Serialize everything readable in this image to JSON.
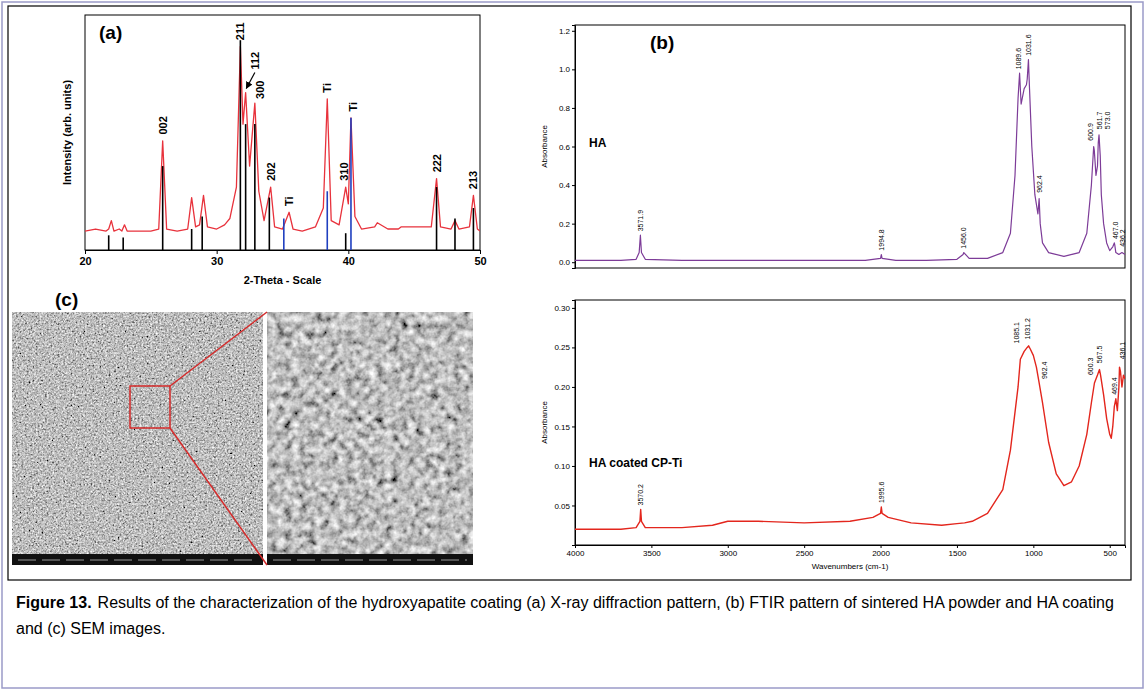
{
  "chart_data": [
    {
      "type": "line",
      "title": "(a)",
      "x_label": "2-Theta - Scale",
      "y_label": "Intensity (arb. units)",
      "xlim": [
        20,
        50
      ],
      "ylim": [
        0,
        112
      ],
      "xticks": [
        20,
        30,
        40,
        50
      ],
      "tick_labels": "x",
      "series": [
        {
          "type": "line",
          "color": "#e8323c",
          "x": [
            20,
            20.8,
            21.6,
            21.8,
            22.0,
            22.2,
            22.6,
            22.8,
            23.0,
            23.2,
            24,
            25,
            25.6,
            25.9,
            26.2,
            27,
            27.8,
            28.1,
            28.4,
            28.7,
            29.0,
            29.3,
            30,
            30.6,
            31.0,
            31.5,
            31.8,
            32.0,
            32.2,
            32.5,
            32.9,
            33.2,
            33.6,
            34.1,
            34.4,
            35,
            35.5,
            35.8,
            36.5,
            37.5,
            38.1,
            38.4,
            38.7,
            39.3,
            39.8,
            40.0,
            40.2,
            40.5,
            41,
            42,
            42.2,
            43,
            43.8,
            44,
            45,
            46.3,
            46.7,
            47.0,
            47.8,
            48.1,
            48.4,
            49.2,
            49.5,
            49.8,
            50
          ],
          "values": [
            9,
            10,
            9,
            10,
            14,
            9,
            10,
            9,
            12,
            9,
            9,
            9,
            10,
            52,
            10,
            9,
            10,
            25,
            11,
            12,
            26,
            11,
            10,
            12,
            15,
            30,
            97,
            60,
            75,
            40,
            70,
            28,
            14,
            30,
            11,
            10,
            18,
            10,
            9,
            11,
            20,
            72,
            14,
            12,
            30,
            22,
            63,
            16,
            10,
            11,
            13,
            10,
            10,
            11,
            11,
            11,
            34,
            11,
            10,
            14,
            10,
            11,
            26,
            10,
            9
          ]
        },
        {
          "type": "stick",
          "color": "#000000",
          "x": [
            21.8,
            22.9,
            25.9,
            28.1,
            28.9,
            31.8,
            32.2,
            32.9,
            34.0,
            39.8,
            46.7,
            48.1,
            49.5
          ],
          "values": [
            7,
            6,
            40,
            10,
            16,
            100,
            60,
            60,
            25,
            8,
            30,
            15,
            20
          ]
        },
        {
          "type": "stick",
          "color": "#1f3fbf",
          "x": [
            35.1,
            38.4,
            40.2
          ],
          "values": [
            15,
            28,
            63
          ]
        }
      ],
      "annotations": [
        {
          "text": "002",
          "x": 25.9,
          "y": 55
        },
        {
          "text": "211",
          "x": 31.8,
          "y": 100
        },
        {
          "text": "112",
          "x": 32.9,
          "y": 86,
          "arrow_x": 32.25,
          "arrow_y": 77
        },
        {
          "text": "300",
          "x": 33.3,
          "y": 72
        },
        {
          "text": "202",
          "x": 34.1,
          "y": 33
        },
        {
          "text": "Ti",
          "x": 35.5,
          "y": 21
        },
        {
          "text": "Ti",
          "x": 38.4,
          "y": 75
        },
        {
          "text": "310",
          "x": 39.7,
          "y": 33
        },
        {
          "text": "Ti",
          "x": 40.35,
          "y": 66
        },
        {
          "text": "222",
          "x": 46.7,
          "y": 37
        },
        {
          "text": "213",
          "x": 49.5,
          "y": 29
        }
      ]
    },
    {
      "type": "line",
      "title": "(b)",
      "y_label": "Absorbance",
      "xlim": [
        4000,
        400
      ],
      "ylim": [
        -0.03,
        1.23
      ],
      "yticks": [
        {
          "value": 0,
          "label": "0.0"
        },
        0.2,
        0.4,
        0.6,
        0.8,
        {
          "value": 1,
          "label": "1.0"
        },
        1.2
      ],
      "tick_labels": "y",
      "series": [
        {
          "name": "HA",
          "color": "#7d3c98",
          "x": [
            4000,
            3700,
            3600,
            3580,
            3572,
            3565,
            3540,
            3300,
            3000,
            2500,
            2100,
            2000,
            1995,
            1990,
            1900,
            1700,
            1500,
            1460,
            1455,
            1420,
            1300,
            1200,
            1150,
            1120,
            1100,
            1090,
            1080,
            1060,
            1045,
            1040,
            1032,
            1025,
            1010,
            990,
            970,
            962,
            955,
            940,
            900,
            800,
            700,
            650,
            620,
            605,
            601,
            590,
            580,
            575,
            570,
            562,
            555,
            540,
            520,
            500,
            480,
            470,
            467,
            460,
            440,
            420,
            400
          ],
          "values": [
            0.01,
            0.01,
            0.015,
            0.05,
            0.14,
            0.05,
            0.015,
            0.01,
            0.01,
            0.01,
            0.01,
            0.02,
            0.04,
            0.02,
            0.01,
            0.01,
            0.015,
            0.04,
            0.05,
            0.02,
            0.02,
            0.05,
            0.15,
            0.45,
            0.85,
            0.98,
            0.82,
            0.9,
            0.92,
            0.95,
            1.05,
            0.9,
            0.6,
            0.35,
            0.25,
            0.33,
            0.2,
            0.1,
            0.05,
            0.03,
            0.05,
            0.15,
            0.4,
            0.6,
            0.58,
            0.45,
            0.5,
            0.62,
            0.66,
            0.55,
            0.35,
            0.2,
            0.1,
            0.06,
            0.08,
            0.1,
            0.09,
            0.05,
            0.04,
            0.05,
            0.04
          ]
        }
      ],
      "annotations": [
        {
          "text": "3571.9",
          "x": 3572,
          "y": 0.16
        },
        {
          "text": "1994.8",
          "x": 1995,
          "y": 0.06
        },
        {
          "text": "1456.0",
          "x": 1456,
          "y": 0.07
        },
        {
          "text": "1089.6",
          "x": 1100,
          "y": 1.0
        },
        {
          "text": "1031.6",
          "x": 1030,
          "y": 1.07
        },
        {
          "text": "962.4",
          "x": 962,
          "y": 0.36
        },
        {
          "text": "600.9",
          "x": 625,
          "y": 0.63
        },
        {
          "text": "561.7",
          "x": 570,
          "y": 0.69
        },
        {
          "text": "573.0",
          "x": 515,
          "y": 0.69
        },
        {
          "text": "467.0",
          "x": 462,
          "y": 0.12
        },
        {
          "text": "436.2",
          "x": 415,
          "y": 0.08
        }
      ]
    },
    {
      "type": "line",
      "x_label": "Wavenumbers (cm-1)",
      "y_label": "Absorbance",
      "xlim": [
        4000,
        400
      ],
      "ylim": [
        0,
        0.31
      ],
      "xticks": [
        4000,
        3500,
        3000,
        2500,
        2000,
        1500,
        1000,
        500
      ],
      "yticks": [
        0.05,
        {
          "value": 0.1,
          "label": "0.10"
        },
        0.15,
        {
          "value": 0.2,
          "label": "0.20"
        },
        0.25,
        {
          "value": 0.3,
          "label": "0.30"
        }
      ],
      "series": [
        {
          "name": "HA coated CP-Ti",
          "color": "#e3261d",
          "x": [
            4000,
            3700,
            3600,
            3575,
            3570,
            3565,
            3540,
            3300,
            3100,
            3000,
            2800,
            2500,
            2200,
            2050,
            2000,
            1995,
            1990,
            1950,
            1800,
            1600,
            1500,
            1450,
            1400,
            1300,
            1200,
            1150,
            1100,
            1085,
            1060,
            1040,
            1031,
            1020,
            1000,
            980,
            962,
            940,
            900,
            850,
            800,
            750,
            700,
            650,
            620,
            600,
            590,
            580,
            567,
            560,
            540,
            520,
            500,
            490,
            480,
            470,
            460,
            450,
            440,
            436,
            430,
            420,
            410,
            400
          ],
          "values": [
            0.02,
            0.02,
            0.022,
            0.03,
            0.045,
            0.03,
            0.022,
            0.022,
            0.025,
            0.03,
            0.03,
            0.028,
            0.03,
            0.035,
            0.04,
            0.048,
            0.04,
            0.035,
            0.028,
            0.025,
            0.027,
            0.028,
            0.03,
            0.04,
            0.07,
            0.12,
            0.2,
            0.235,
            0.245,
            0.25,
            0.252,
            0.248,
            0.24,
            0.225,
            0.205,
            0.18,
            0.13,
            0.09,
            0.075,
            0.08,
            0.1,
            0.14,
            0.18,
            0.205,
            0.21,
            0.215,
            0.222,
            0.215,
            0.19,
            0.16,
            0.14,
            0.135,
            0.15,
            0.175,
            0.185,
            0.17,
            0.2,
            0.225,
            0.22,
            0.2,
            0.215,
            0.21
          ]
        }
      ],
      "annotations": [
        {
          "text": "3570.2",
          "x": 3570,
          "y": 0.05
        },
        {
          "text": "1995.6",
          "x": 1995,
          "y": 0.053
        },
        {
          "text": "1085.1",
          "x": 1110,
          "y": 0.255
        },
        {
          "text": "1031.2",
          "x": 1040,
          "y": 0.26
        },
        {
          "text": "962.4",
          "x": 930,
          "y": 0.21
        },
        {
          "text": "600.3",
          "x": 625,
          "y": 0.215
        },
        {
          "text": "567.5",
          "x": 565,
          "y": 0.23
        },
        {
          "text": "469.4",
          "x": 470,
          "y": 0.19
        },
        {
          "text": "436.1",
          "x": 415,
          "y": 0.235
        }
      ]
    }
  ],
  "figure": {
    "caption_label": "Figure 13.",
    "caption_text": "Results of the characterization of the hydroxyapatite coating (a) X-ray diffraction pattern, (b) FTIR pattern of sintered HA powder and HA coating and (c) SEM images.",
    "sem": {
      "label": "(c)"
    }
  }
}
